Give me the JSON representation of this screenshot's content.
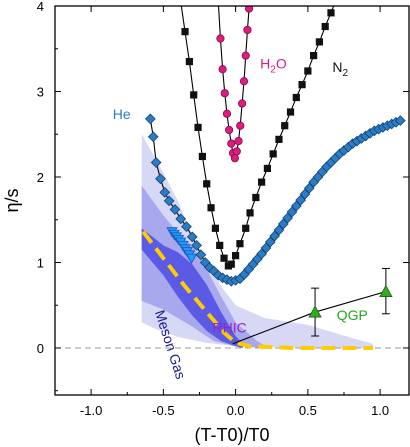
{
  "chart_data": {
    "type": "scatter",
    "xlabel": "(T-T0)/T0",
    "ylabel": "η/s",
    "xlim": [
      -1.25,
      1.2
    ],
    "ylim": [
      -0.55,
      4.0
    ],
    "xticks": [
      -1.0,
      -0.5,
      0.0,
      0.5,
      1.0
    ],
    "xtick_labels": [
      "-1.0",
      "-0.5",
      "0.0",
      "0.5",
      "1.0"
    ],
    "yticks": [
      0,
      1,
      2,
      3,
      4
    ],
    "ytick_labels": [
      "0",
      "1",
      "2",
      "3",
      "4"
    ],
    "zero_line": {
      "y": 0,
      "style": "dashed",
      "color": "#999999"
    },
    "grid": false,
    "bands": [
      {
        "id": "meson-outer",
        "color": "#d7d7f6",
        "upper": [
          [
            -0.65,
            2.5
          ],
          [
            -0.5,
            2.05
          ],
          [
            -0.4,
            1.72
          ],
          [
            -0.3,
            1.32
          ],
          [
            -0.2,
            1.0
          ],
          [
            -0.1,
            0.72
          ],
          [
            0.0,
            0.5
          ],
          [
            0.2,
            0.35
          ],
          [
            0.5,
            0.27
          ],
          [
            0.8,
            0.12
          ],
          [
            0.95,
            0.05
          ]
        ],
        "lower": [
          [
            -0.65,
            0.3
          ],
          [
            -0.55,
            0.22
          ],
          [
            -0.4,
            0.13
          ],
          [
            -0.2,
            0.06
          ],
          [
            0.0,
            0.02
          ],
          [
            0.3,
            0.01
          ],
          [
            0.95,
            0.0
          ]
        ]
      },
      {
        "id": "meson-mid",
        "color": "#a8a8ee",
        "upper": [
          [
            -0.65,
            1.9
          ],
          [
            -0.5,
            1.55
          ],
          [
            -0.4,
            1.35
          ],
          [
            -0.3,
            1.2
          ],
          [
            -0.2,
            0.92
          ],
          [
            -0.1,
            0.6
          ],
          [
            0.0,
            0.3
          ],
          [
            0.15,
            0.08
          ],
          [
            0.2,
            0.03
          ]
        ],
        "lower": [
          [
            -0.65,
            0.55
          ],
          [
            -0.5,
            0.45
          ],
          [
            -0.3,
            0.25
          ],
          [
            -0.15,
            0.08
          ],
          [
            0.0,
            0.02
          ],
          [
            0.2,
            0.0
          ]
        ]
      },
      {
        "id": "meson-inner",
        "color": "#5a5ae6",
        "upper": [
          [
            -0.65,
            1.4
          ],
          [
            -0.5,
            1.2
          ],
          [
            -0.4,
            1.12
          ],
          [
            -0.3,
            0.98
          ],
          [
            -0.2,
            0.74
          ],
          [
            -0.1,
            0.42
          ],
          [
            0.0,
            0.14
          ],
          [
            0.05,
            0.05
          ]
        ],
        "lower": [
          [
            -0.65,
            1.15
          ],
          [
            -0.5,
            0.85
          ],
          [
            -0.4,
            0.6
          ],
          [
            -0.3,
            0.38
          ],
          [
            -0.2,
            0.2
          ],
          [
            -0.1,
            0.08
          ],
          [
            0.0,
            0.02
          ],
          [
            0.05,
            0.0
          ]
        ]
      }
    ],
    "series": [
      {
        "name": "H2O",
        "marker": "circle",
        "color": "#e2197f",
        "stroke": "#7a0f45",
        "line": true,
        "points": [
          [
            -0.12,
            4.05
          ],
          [
            -0.105,
            3.62
          ],
          [
            -0.09,
            3.26
          ],
          [
            -0.075,
            2.98
          ],
          [
            -0.06,
            2.74
          ],
          [
            -0.045,
            2.55
          ],
          [
            -0.03,
            2.39
          ],
          [
            -0.018,
            2.28
          ],
          [
            -0.005,
            2.22
          ],
          [
            0.008,
            2.3
          ],
          [
            0.02,
            2.42
          ],
          [
            0.032,
            2.6
          ],
          [
            0.045,
            2.86
          ],
          [
            0.058,
            3.12
          ],
          [
            0.07,
            3.42
          ],
          [
            0.082,
            3.72
          ],
          [
            0.093,
            3.97
          ]
        ]
      },
      {
        "name": "N2",
        "marker": "square",
        "color": "#111111",
        "stroke": "#111111",
        "line": true,
        "points": [
          [
            -0.38,
            4.05
          ],
          [
            -0.35,
            3.7
          ],
          [
            -0.32,
            3.35
          ],
          [
            -0.29,
            2.96
          ],
          [
            -0.26,
            2.58
          ],
          [
            -0.23,
            2.24
          ],
          [
            -0.2,
            1.92
          ],
          [
            -0.17,
            1.64
          ],
          [
            -0.14,
            1.4
          ],
          [
            -0.11,
            1.2
          ],
          [
            -0.08,
            1.05
          ],
          [
            -0.05,
            0.96
          ],
          [
            -0.03,
            0.98
          ],
          [
            0.0,
            1.08
          ],
          [
            0.03,
            1.22
          ],
          [
            0.07,
            1.4
          ],
          [
            0.1,
            1.58
          ],
          [
            0.14,
            1.76
          ],
          [
            0.18,
            1.94
          ],
          [
            0.22,
            2.1
          ],
          [
            0.26,
            2.27
          ],
          [
            0.3,
            2.44
          ],
          [
            0.34,
            2.6
          ],
          [
            0.38,
            2.76
          ],
          [
            0.42,
            2.93
          ],
          [
            0.46,
            3.08
          ],
          [
            0.5,
            3.24
          ],
          [
            0.54,
            3.42
          ],
          [
            0.58,
            3.58
          ],
          [
            0.62,
            3.76
          ],
          [
            0.66,
            3.92
          ],
          [
            0.69,
            4.05
          ]
        ]
      },
      {
        "name": "He",
        "marker": "diamond",
        "color": "#2b7bc6",
        "stroke": "#14456e",
        "line": true,
        "points": [
          [
            -0.59,
            2.68
          ],
          [
            -0.57,
            2.47
          ],
          [
            -0.55,
            2.17
          ],
          [
            -0.52,
            1.98
          ],
          [
            -0.49,
            1.82
          ],
          [
            -0.46,
            1.72
          ],
          [
            -0.42,
            1.62
          ],
          [
            -0.38,
            1.51
          ],
          [
            -0.34,
            1.42
          ],
          [
            -0.3,
            1.3
          ],
          [
            -0.27,
            1.2
          ],
          [
            -0.24,
            1.09
          ],
          [
            -0.21,
            1.0
          ],
          [
            -0.18,
            0.94
          ],
          [
            -0.15,
            0.9
          ],
          [
            -0.12,
            0.85
          ],
          [
            -0.09,
            0.82
          ],
          [
            -0.06,
            0.8
          ],
          [
            -0.03,
            0.78
          ],
          [
            0.0,
            0.79
          ],
          [
            0.03,
            0.81
          ],
          [
            0.06,
            0.86
          ],
          [
            0.09,
            0.92
          ],
          [
            0.12,
            0.98
          ],
          [
            0.15,
            1.04
          ],
          [
            0.18,
            1.1
          ],
          [
            0.21,
            1.17
          ],
          [
            0.24,
            1.24
          ],
          [
            0.27,
            1.31
          ],
          [
            0.3,
            1.38
          ],
          [
            0.33,
            1.45
          ],
          [
            0.36,
            1.52
          ],
          [
            0.39,
            1.59
          ],
          [
            0.42,
            1.66
          ],
          [
            0.45,
            1.73
          ],
          [
            0.48,
            1.8
          ],
          [
            0.51,
            1.87
          ],
          [
            0.54,
            1.94
          ],
          [
            0.57,
            2.0
          ],
          [
            0.6,
            2.06
          ],
          [
            0.63,
            2.12
          ],
          [
            0.66,
            2.17
          ],
          [
            0.69,
            2.22
          ],
          [
            0.72,
            2.27
          ],
          [
            0.75,
            2.31
          ],
          [
            0.78,
            2.35
          ],
          [
            0.81,
            2.39
          ],
          [
            0.84,
            2.42
          ],
          [
            0.87,
            2.45
          ],
          [
            0.9,
            2.48
          ],
          [
            0.93,
            2.51
          ],
          [
            0.96,
            2.54
          ],
          [
            0.99,
            2.56
          ],
          [
            1.02,
            2.58
          ],
          [
            1.05,
            2.6
          ],
          [
            1.08,
            2.62
          ],
          [
            1.11,
            2.64
          ],
          [
            1.14,
            2.66
          ]
        ]
      },
      {
        "name": "Meson Gas",
        "marker": "triangle-down",
        "color": "#1d9bff",
        "stroke": "#1d58b5",
        "line": false,
        "points": [
          [
            -0.44,
            1.36
          ],
          [
            -0.425,
            1.33
          ],
          [
            -0.41,
            1.3
          ],
          [
            -0.395,
            1.27
          ],
          [
            -0.38,
            1.24
          ],
          [
            -0.365,
            1.2
          ],
          [
            -0.35,
            1.16
          ],
          [
            -0.335,
            1.13
          ],
          [
            -0.32,
            1.09
          ],
          [
            -0.305,
            1.05
          ]
        ]
      },
      {
        "name": "RHIC",
        "marker": "none",
        "color": "#ffcc00",
        "line": true,
        "dashed": true,
        "points": [
          [
            -0.64,
            1.36
          ],
          [
            -0.5,
            1.05
          ],
          [
            -0.35,
            0.72
          ],
          [
            -0.2,
            0.42
          ],
          [
            -0.08,
            0.18
          ],
          [
            0.0,
            0.06
          ],
          [
            0.1,
            0.02
          ],
          [
            0.4,
            0.0
          ],
          [
            0.95,
            0.0
          ]
        ]
      },
      {
        "name": "QGP",
        "marker": "triangle",
        "color": "#33aa22",
        "stroke": "#1c5e13",
        "line": true,
        "connect_from": [
          -0.02,
          0.05
        ],
        "points": [
          [
            0.55,
            0.42
          ],
          [
            1.04,
            0.66
          ]
        ],
        "errors": [
          [
            0.28,
            0.28
          ],
          [
            0.26,
            0.27
          ]
        ]
      }
    ],
    "annotations": [
      {
        "text": "H2O",
        "x": 0.17,
        "y": 3.27,
        "color": "#e2197f"
      },
      {
        "text": "N2",
        "x": 0.67,
        "y": 3.23,
        "color": "#111111"
      },
      {
        "text": "He",
        "x": -0.85,
        "y": 2.68,
        "color": "#2b7bc6"
      },
      {
        "text": "Meson Gas",
        "x": -0.56,
        "y": 0.42,
        "color": "#1a1a8a",
        "rotate": 72
      },
      {
        "text": "RHIC",
        "x": -0.16,
        "y": 0.18,
        "color": "#9a22c8"
      },
      {
        "text": "QGP",
        "x": 0.7,
        "y": 0.33,
        "color": "#22aa22"
      }
    ]
  }
}
